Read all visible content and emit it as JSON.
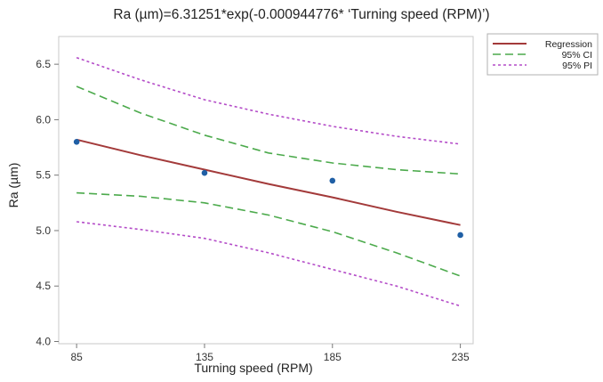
{
  "chart_data": {
    "type": "line",
    "title": "Ra (µm)=6.31251*exp(-0.000944776* ‘Turning speed (RPM)’)",
    "xlabel": "Turning speed (RPM)",
    "ylabel": "Ra (µm)",
    "xlim": [
      78,
      240
    ],
    "ylim": [
      3.98,
      6.75
    ],
    "xticks": [
      85,
      135,
      185,
      235
    ],
    "yticks": [
      4.0,
      4.5,
      5.0,
      5.5,
      6.0,
      6.5
    ],
    "ytick_labels": [
      "4.0",
      "4.5",
      "5.0",
      "5.5",
      "6.0",
      "6.5"
    ],
    "grid": false,
    "legend_placement": "outside-top-right",
    "points": [
      {
        "x": 85,
        "y": 5.8
      },
      {
        "x": 135,
        "y": 5.52
      },
      {
        "x": 185,
        "y": 5.45
      },
      {
        "x": 235,
        "y": 4.96
      }
    ],
    "series": [
      {
        "name": "Regression",
        "style": "solid",
        "color": "#a33a3a",
        "x": [
          85,
          110,
          135,
          160,
          185,
          210,
          235
        ],
        "y": [
          5.82,
          5.68,
          5.55,
          5.42,
          5.3,
          5.17,
          5.05
        ]
      },
      {
        "name": "95% CI",
        "style": "dashed",
        "color": "#4caa4c",
        "x": [
          85,
          110,
          135,
          160,
          185,
          210,
          235
        ],
        "y_upper": [
          6.3,
          6.06,
          5.86,
          5.7,
          5.61,
          5.55,
          5.51
        ],
        "y_lower": [
          5.34,
          5.31,
          5.25,
          5.14,
          4.99,
          4.8,
          4.59
        ]
      },
      {
        "name": "95% PI",
        "style": "dotted",
        "color": "#b44cc8",
        "x": [
          85,
          110,
          135,
          160,
          185,
          210,
          235
        ],
        "y_upper": [
          6.56,
          6.36,
          6.18,
          6.05,
          5.94,
          5.85,
          5.78
        ],
        "y_lower": [
          5.08,
          5.01,
          4.93,
          4.8,
          4.65,
          4.5,
          4.32
        ]
      }
    ],
    "point_color": "#1f5fa5"
  }
}
